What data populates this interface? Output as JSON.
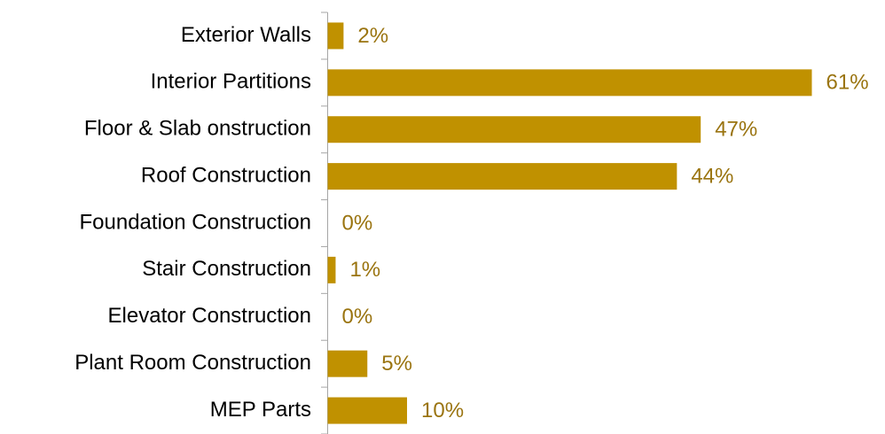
{
  "chart_data": {
    "type": "bar",
    "orientation": "horizontal",
    "categories": [
      "Exterior Walls",
      "Interior Partitions",
      "Floor & Slab onstruction",
      "Roof Construction",
      "Foundation Construction",
      "Stair Construction",
      "Elevator Construction",
      "Plant Room Construction",
      "MEP Parts"
    ],
    "values": [
      2,
      61,
      47,
      44,
      0,
      1,
      0,
      5,
      10
    ],
    "value_labels": [
      "2%",
      "61%",
      "47%",
      "44%",
      "0%",
      "1%",
      "0%",
      "5%",
      "10%"
    ],
    "color": "#c09100"
  }
}
